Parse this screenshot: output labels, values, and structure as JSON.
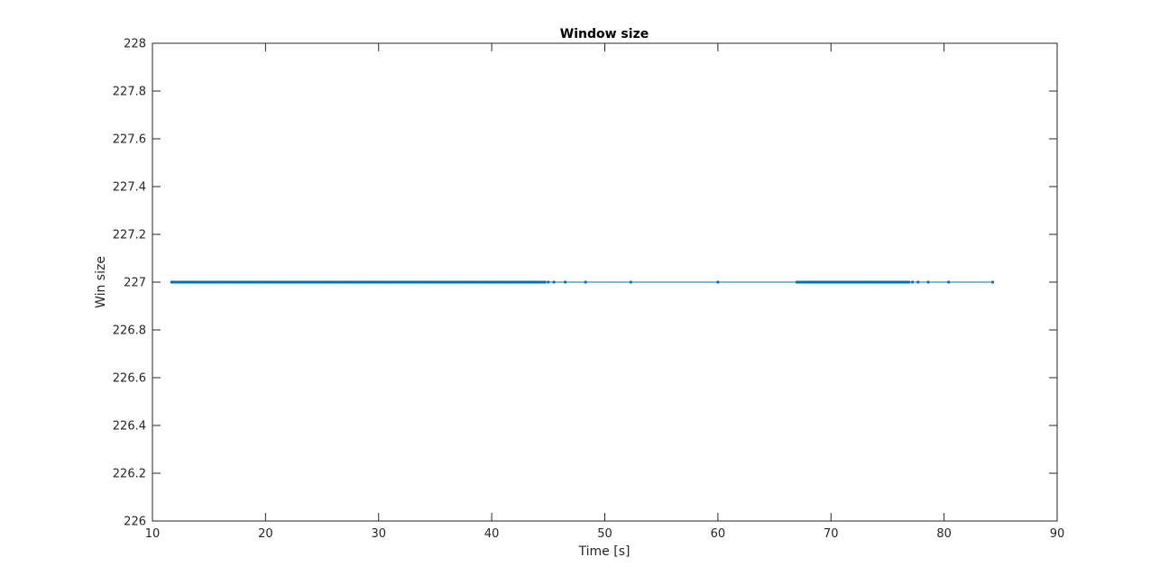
{
  "chart_data": {
    "type": "line",
    "title": "Window size",
    "xlabel": "Time [s]",
    "ylabel": "Win size",
    "xlim": [
      10,
      90
    ],
    "ylim": [
      226,
      228
    ],
    "xticks": [
      10,
      20,
      30,
      40,
      50,
      60,
      70,
      80,
      90
    ],
    "yticks": [
      226,
      226.2,
      226.4,
      226.6,
      226.8,
      227,
      227.2,
      227.4,
      227.6,
      227.8,
      228
    ],
    "xtick_labels": [
      "10",
      "20",
      "30",
      "40",
      "50",
      "60",
      "70",
      "80",
      "90"
    ],
    "ytick_labels": [
      "226",
      "226.2",
      "226.4",
      "226.6",
      "226.8",
      "227",
      "227.2",
      "227.4",
      "227.6",
      "227.8",
      "228"
    ],
    "grid": false,
    "legend": false,
    "colors": {
      "series": "#0072bd",
      "axis": "#262626"
    },
    "series": [
      {
        "style": "line-with-point-markers",
        "x": [
          11.7,
          12.5,
          13.5,
          14.5,
          15.5,
          16.5,
          17.5,
          18.5,
          19.5,
          20.5,
          21.5,
          22.5,
          23.5,
          24.5,
          25.5,
          26.5,
          27.5,
          28.5,
          29.5,
          30.5,
          31.5,
          32.5,
          33.5,
          34.5,
          35.5,
          36.5,
          37.5,
          38.5,
          39.5,
          40.5,
          41.5,
          42.5,
          43.5,
          44.3,
          44.7,
          45.0,
          45.5,
          46.5,
          48.3,
          52.3,
          60.0,
          67.0,
          67.5,
          68.0,
          68.5,
          69.0,
          69.5,
          70.0,
          70.5,
          71.0,
          71.5,
          72.0,
          72.5,
          73.0,
          73.5,
          74.0,
          74.5,
          75.0,
          75.5,
          76.0,
          76.5,
          76.9,
          77.2,
          77.7,
          78.6,
          80.4,
          84.3
        ],
        "y": [
          227,
          227,
          227,
          227,
          227,
          227,
          227,
          227,
          227,
          227,
          227,
          227,
          227,
          227,
          227,
          227,
          227,
          227,
          227,
          227,
          227,
          227,
          227,
          227,
          227,
          227,
          227,
          227,
          227,
          227,
          227,
          227,
          227,
          227,
          227,
          227,
          227,
          227,
          227,
          227,
          227,
          227,
          227,
          227,
          227,
          227,
          227,
          227,
          227,
          227,
          227,
          227,
          227,
          227,
          227,
          227,
          227,
          227,
          227,
          227,
          227,
          227,
          227,
          227,
          227,
          227,
          227
        ],
        "dense_segments": [
          [
            11.7,
            44.8
          ],
          [
            66.9,
            76.9
          ]
        ]
      }
    ]
  }
}
